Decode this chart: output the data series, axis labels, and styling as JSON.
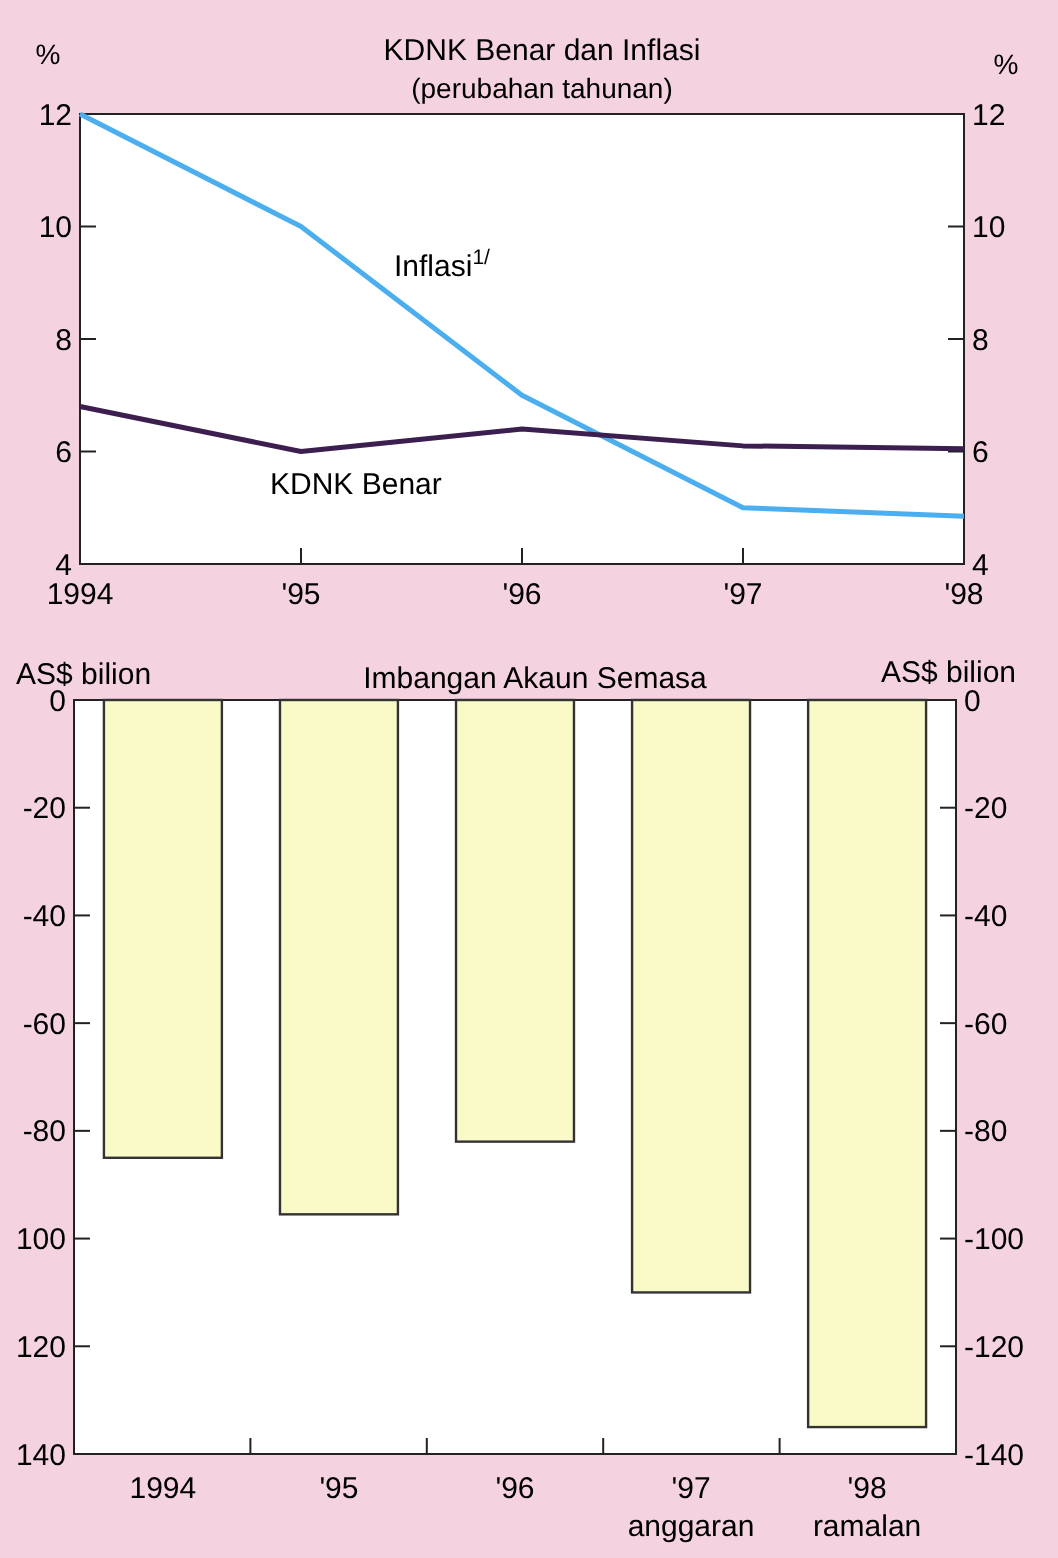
{
  "chart_data": [
    {
      "type": "line",
      "title": "KDNK Benar dan Inflasi",
      "subtitle": "(perubahan tahunan)",
      "ylabel": "%",
      "y2label": "%",
      "x": [
        1994,
        1995,
        1996,
        1997,
        1998
      ],
      "xlim": [
        1994,
        1998
      ],
      "xticks": [
        1994,
        {
          "value": 1995,
          "label": "'95"
        },
        {
          "value": 1996,
          "label": "'96"
        },
        {
          "value": 1997,
          "label": "'97"
        },
        {
          "value": 1998,
          "label": "'98"
        }
      ],
      "ylim": [
        4,
        12
      ],
      "yticks": [
        4,
        6,
        8,
        10,
        12
      ],
      "y2lim": [
        4,
        12
      ],
      "y2ticks": [
        4,
        6,
        8,
        10,
        12
      ],
      "grid": false,
      "series": [
        {
          "name": "Inflasi$^{1/}$",
          "color": "#4aaeef",
          "values": [
            12,
            10,
            7,
            5,
            4.85
          ]
        },
        {
          "name": "KDNK Benar",
          "color": "#3d1f4f",
          "values": [
            6.8,
            6.0,
            6.4,
            6.1,
            6.05
          ]
        }
      ]
    },
    {
      "type": "bar",
      "title": "Imbangan Akaun Semasa",
      "ylabel": "AS$ bilion",
      "y2label": "AS$ bilion",
      "categories": [
        "1994",
        "'95",
        "'96",
        "'97\nanggaran",
        "'98\nramalan"
      ],
      "values": [
        -85,
        -95.5,
        -82,
        -110,
        -135
      ],
      "color": "#fafac8",
      "ylim": [
        -140,
        0
      ],
      "yticks": [
        0,
        -20,
        -40,
        -60,
        -80,
        {
          "value": -100,
          "label": "100"
        },
        {
          "value": -120,
          "label": "120"
        },
        {
          "value": -140,
          "label": "140"
        }
      ],
      "y2lim": [
        -140,
        0
      ],
      "y2ticks": [
        0,
        -20,
        -40,
        -60,
        -80,
        -100,
        -120,
        -140
      ],
      "grid": false
    }
  ]
}
